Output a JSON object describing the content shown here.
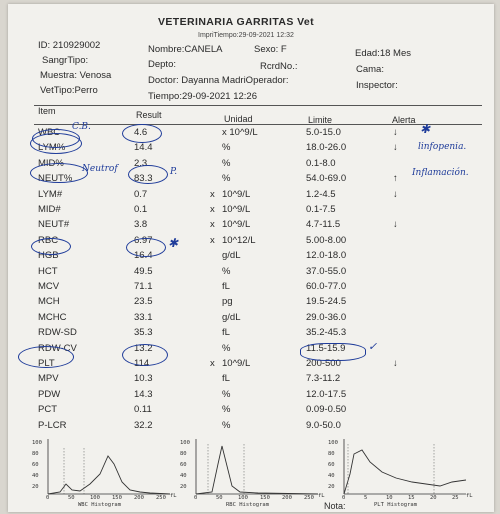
{
  "header": {
    "clinic_name": "VETERINARIA GARRITAS  Vet",
    "print_time": "ImpriTiempo:29-09-2021 12:32",
    "id": "ID: 210929002",
    "sangr_tipo": "SangrTipo:",
    "muestra": "Muestra: Venosa",
    "vet_tipo": "VetTipo:Perro",
    "nombre": "Nombre:CANELA",
    "sexo": "Sexo: F",
    "edad": "Edad:18 Mes",
    "depto": "Depto:",
    "rcrd_no": "RcrdNo.:",
    "cama": "Cama:",
    "doctor": "Doctor: Dayanna MadriOperador:",
    "inspector": "Inspector:",
    "tiempo": "Tiempo:29-09-2021 12:26"
  },
  "columns": {
    "item": "Item",
    "result": "Result",
    "unit": "Unidad",
    "limit": "Limite",
    "alert": "Alerta"
  },
  "rows": [
    {
      "item": "WBC",
      "x": "",
      "result": "4.6",
      "unit": "x 10^9/L",
      "limit": "5.0-15.0",
      "alert": "↓"
    },
    {
      "item": "LYM%",
      "x": "",
      "result": "14.4",
      "unit": "%",
      "limit": "18.0-26.0",
      "alert": "↓"
    },
    {
      "item": "MID%",
      "x": "",
      "result": "2.3",
      "unit": "%",
      "limit": "0.1-8.0",
      "alert": ""
    },
    {
      "item": "NEUT%",
      "x": "",
      "result": "83.3",
      "unit": "%",
      "limit": "54.0-69.0",
      "alert": "↑"
    },
    {
      "item": "LYM#",
      "x": "x",
      "result": "0.7",
      "unit": "10^9/L",
      "limit": "1.2-4.5",
      "alert": "↓"
    },
    {
      "item": "MID#",
      "x": "x",
      "result": "0.1",
      "unit": "10^9/L",
      "limit": "0.1-7.5",
      "alert": ""
    },
    {
      "item": "NEUT#",
      "x": "x",
      "result": "3.8",
      "unit": "10^9/L",
      "limit": "4.7-11.5",
      "alert": "↓"
    },
    {
      "item": "RBC",
      "x": "x",
      "result": "6.97",
      "unit": "10^12/L",
      "limit": "5.00-8.00",
      "alert": ""
    },
    {
      "item": "HGB",
      "x": "",
      "result": "16.4",
      "unit": "g/dL",
      "limit": "12.0-18.0",
      "alert": ""
    },
    {
      "item": "HCT",
      "x": "",
      "result": "49.5",
      "unit": "%",
      "limit": "37.0-55.0",
      "alert": ""
    },
    {
      "item": "MCV",
      "x": "",
      "result": "71.1",
      "unit": "fL",
      "limit": "60.0-77.0",
      "alert": ""
    },
    {
      "item": "MCH",
      "x": "",
      "result": "23.5",
      "unit": "pg",
      "limit": "19.5-24.5",
      "alert": ""
    },
    {
      "item": "MCHC",
      "x": "",
      "result": "33.1",
      "unit": "g/dL",
      "limit": "29.0-36.0",
      "alert": ""
    },
    {
      "item": "RDW-SD",
      "x": "",
      "result": "35.3",
      "unit": "fL",
      "limit": "35.2-45.3",
      "alert": ""
    },
    {
      "item": "RDW-CV",
      "x": "",
      "result": "13.2",
      "unit": "%",
      "limit": "11.5-15.9",
      "alert": ""
    },
    {
      "item": "PLT",
      "x": "x",
      "result": "114",
      "unit": "10^9/L",
      "limit": "200-500",
      "alert": "↓"
    },
    {
      "item": "MPV",
      "x": "",
      "result": "10.3",
      "unit": "fL",
      "limit": "7.3-11.2",
      "alert": ""
    },
    {
      "item": "PDW",
      "x": "",
      "result": "14.3",
      "unit": "%",
      "limit": "12.0-17.5",
      "alert": ""
    },
    {
      "item": "PCT",
      "x": "",
      "result": "0.11",
      "unit": "%",
      "limit": "0.09-0.50",
      "alert": ""
    },
    {
      "item": "P-LCR",
      "x": "",
      "result": "32.2",
      "unit": "%",
      "limit": "9.0-50.0",
      "alert": ""
    }
  ],
  "handwriting": {
    "wbc_note": "C.B.",
    "lym_note": "linfopenia.",
    "neut_note": "Inflamación.",
    "neut_side": "Neutrof",
    "neut_mark": "P."
  },
  "histograms": [
    {
      "label": "WBC Histogram",
      "x_ticks": [
        "0",
        "50",
        "100",
        "150",
        "200",
        "250"
      ],
      "x_unit": "fL",
      "y_ticks": [
        "100",
        "80",
        "60",
        "40",
        "20"
      ]
    },
    {
      "label": "RBC Histogram",
      "x_ticks": [
        "0",
        "50",
        "100",
        "150",
        "200",
        "250"
      ],
      "x_unit": "fL",
      "y_ticks": [
        "100",
        "80",
        "60",
        "40",
        "20"
      ]
    },
    {
      "label": "PLT Histogram",
      "x_ticks": [
        "0",
        "5",
        "10",
        "15",
        "20",
        "25"
      ],
      "x_unit": "fL",
      "y_ticks": [
        "100",
        "80",
        "60",
        "40",
        "20"
      ]
    }
  ],
  "footer": {
    "nota": "Nota:"
  }
}
